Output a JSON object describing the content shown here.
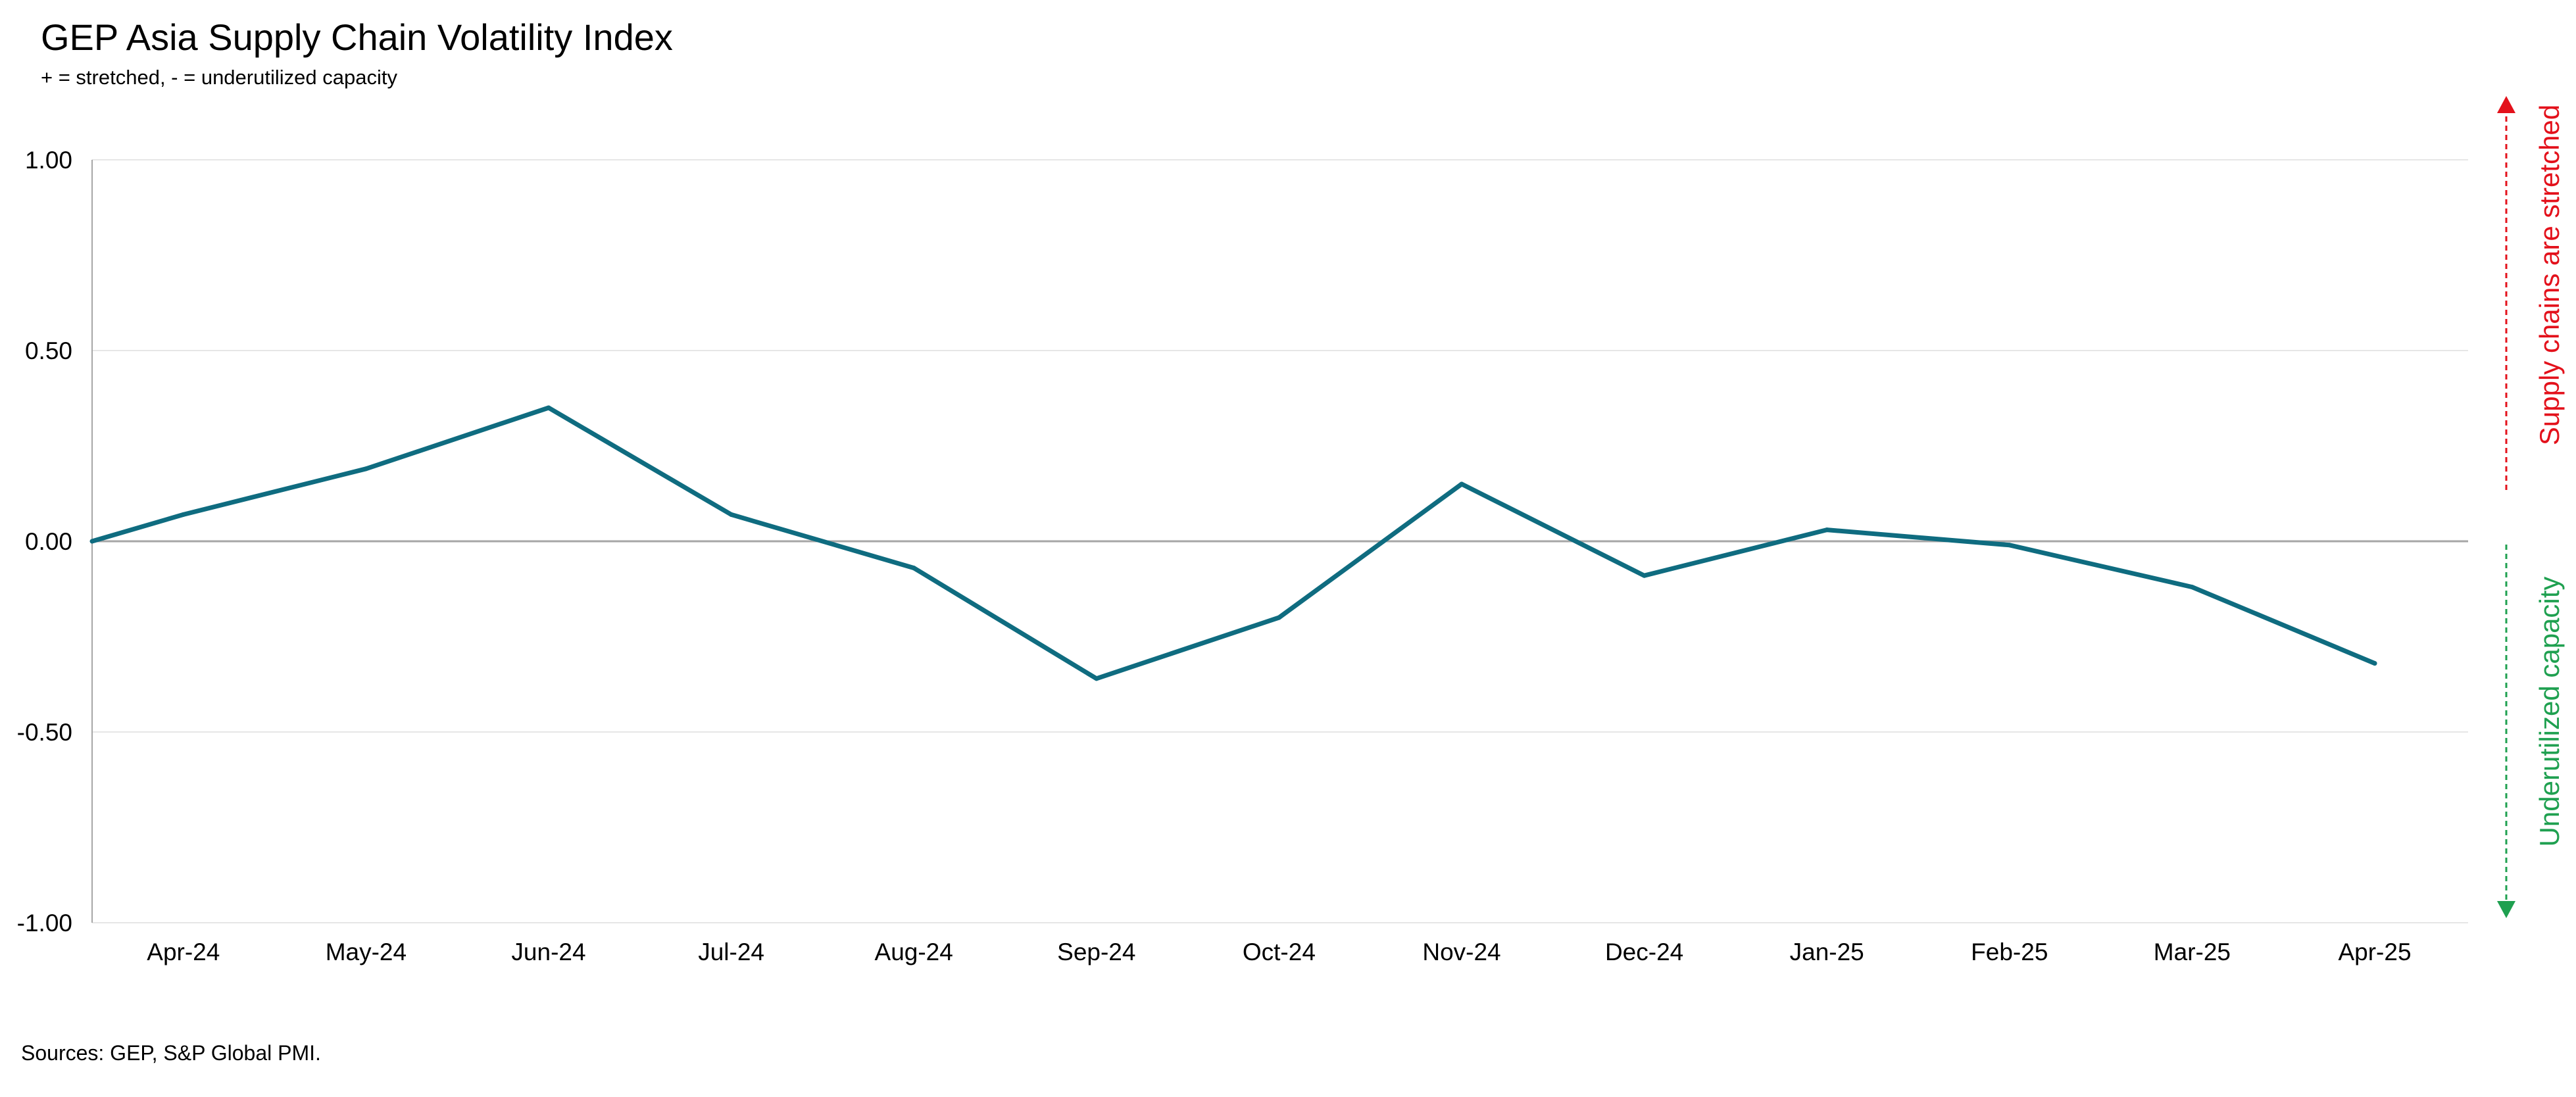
{
  "colors": {
    "line": "#0f6c80",
    "stretched": "#e3111b",
    "underutilized": "#1fa050",
    "gridline": "#e6e6e6",
    "zeroline": "#a6a6a6",
    "axis": "#a6a6a6"
  },
  "chart_data": {
    "type": "line",
    "title": "GEP Asia Supply Chain Volatility Index",
    "subtitle": "+ = stretched, - = underutilized capacity",
    "source": "Sources: GEP, S&P Global PMI.",
    "categories": [
      "Apr-24",
      "May-24",
      "Jun-24",
      "Jul-24",
      "Aug-24",
      "Sep-24",
      "Oct-24",
      "Nov-24",
      "Dec-24",
      "Jan-25",
      "Feb-25",
      "Mar-25",
      "Apr-25"
    ],
    "series": [
      {
        "values": [
          0.07,
          0.19,
          0.35,
          0.07,
          -0.07,
          -0.36,
          -0.2,
          0.15,
          -0.09,
          0.03,
          -0.01,
          -0.12,
          -0.32
        ],
        "start_value": 0.0
      }
    ],
    "yticks": [
      "1.00",
      "0.50",
      "0.00",
      "-0.50",
      "-1.00"
    ],
    "ylim": [
      -1,
      1
    ],
    "grid": true,
    "annotations": {
      "upper": "Supply chains are stretched",
      "lower": "Underutilized capacity"
    }
  }
}
